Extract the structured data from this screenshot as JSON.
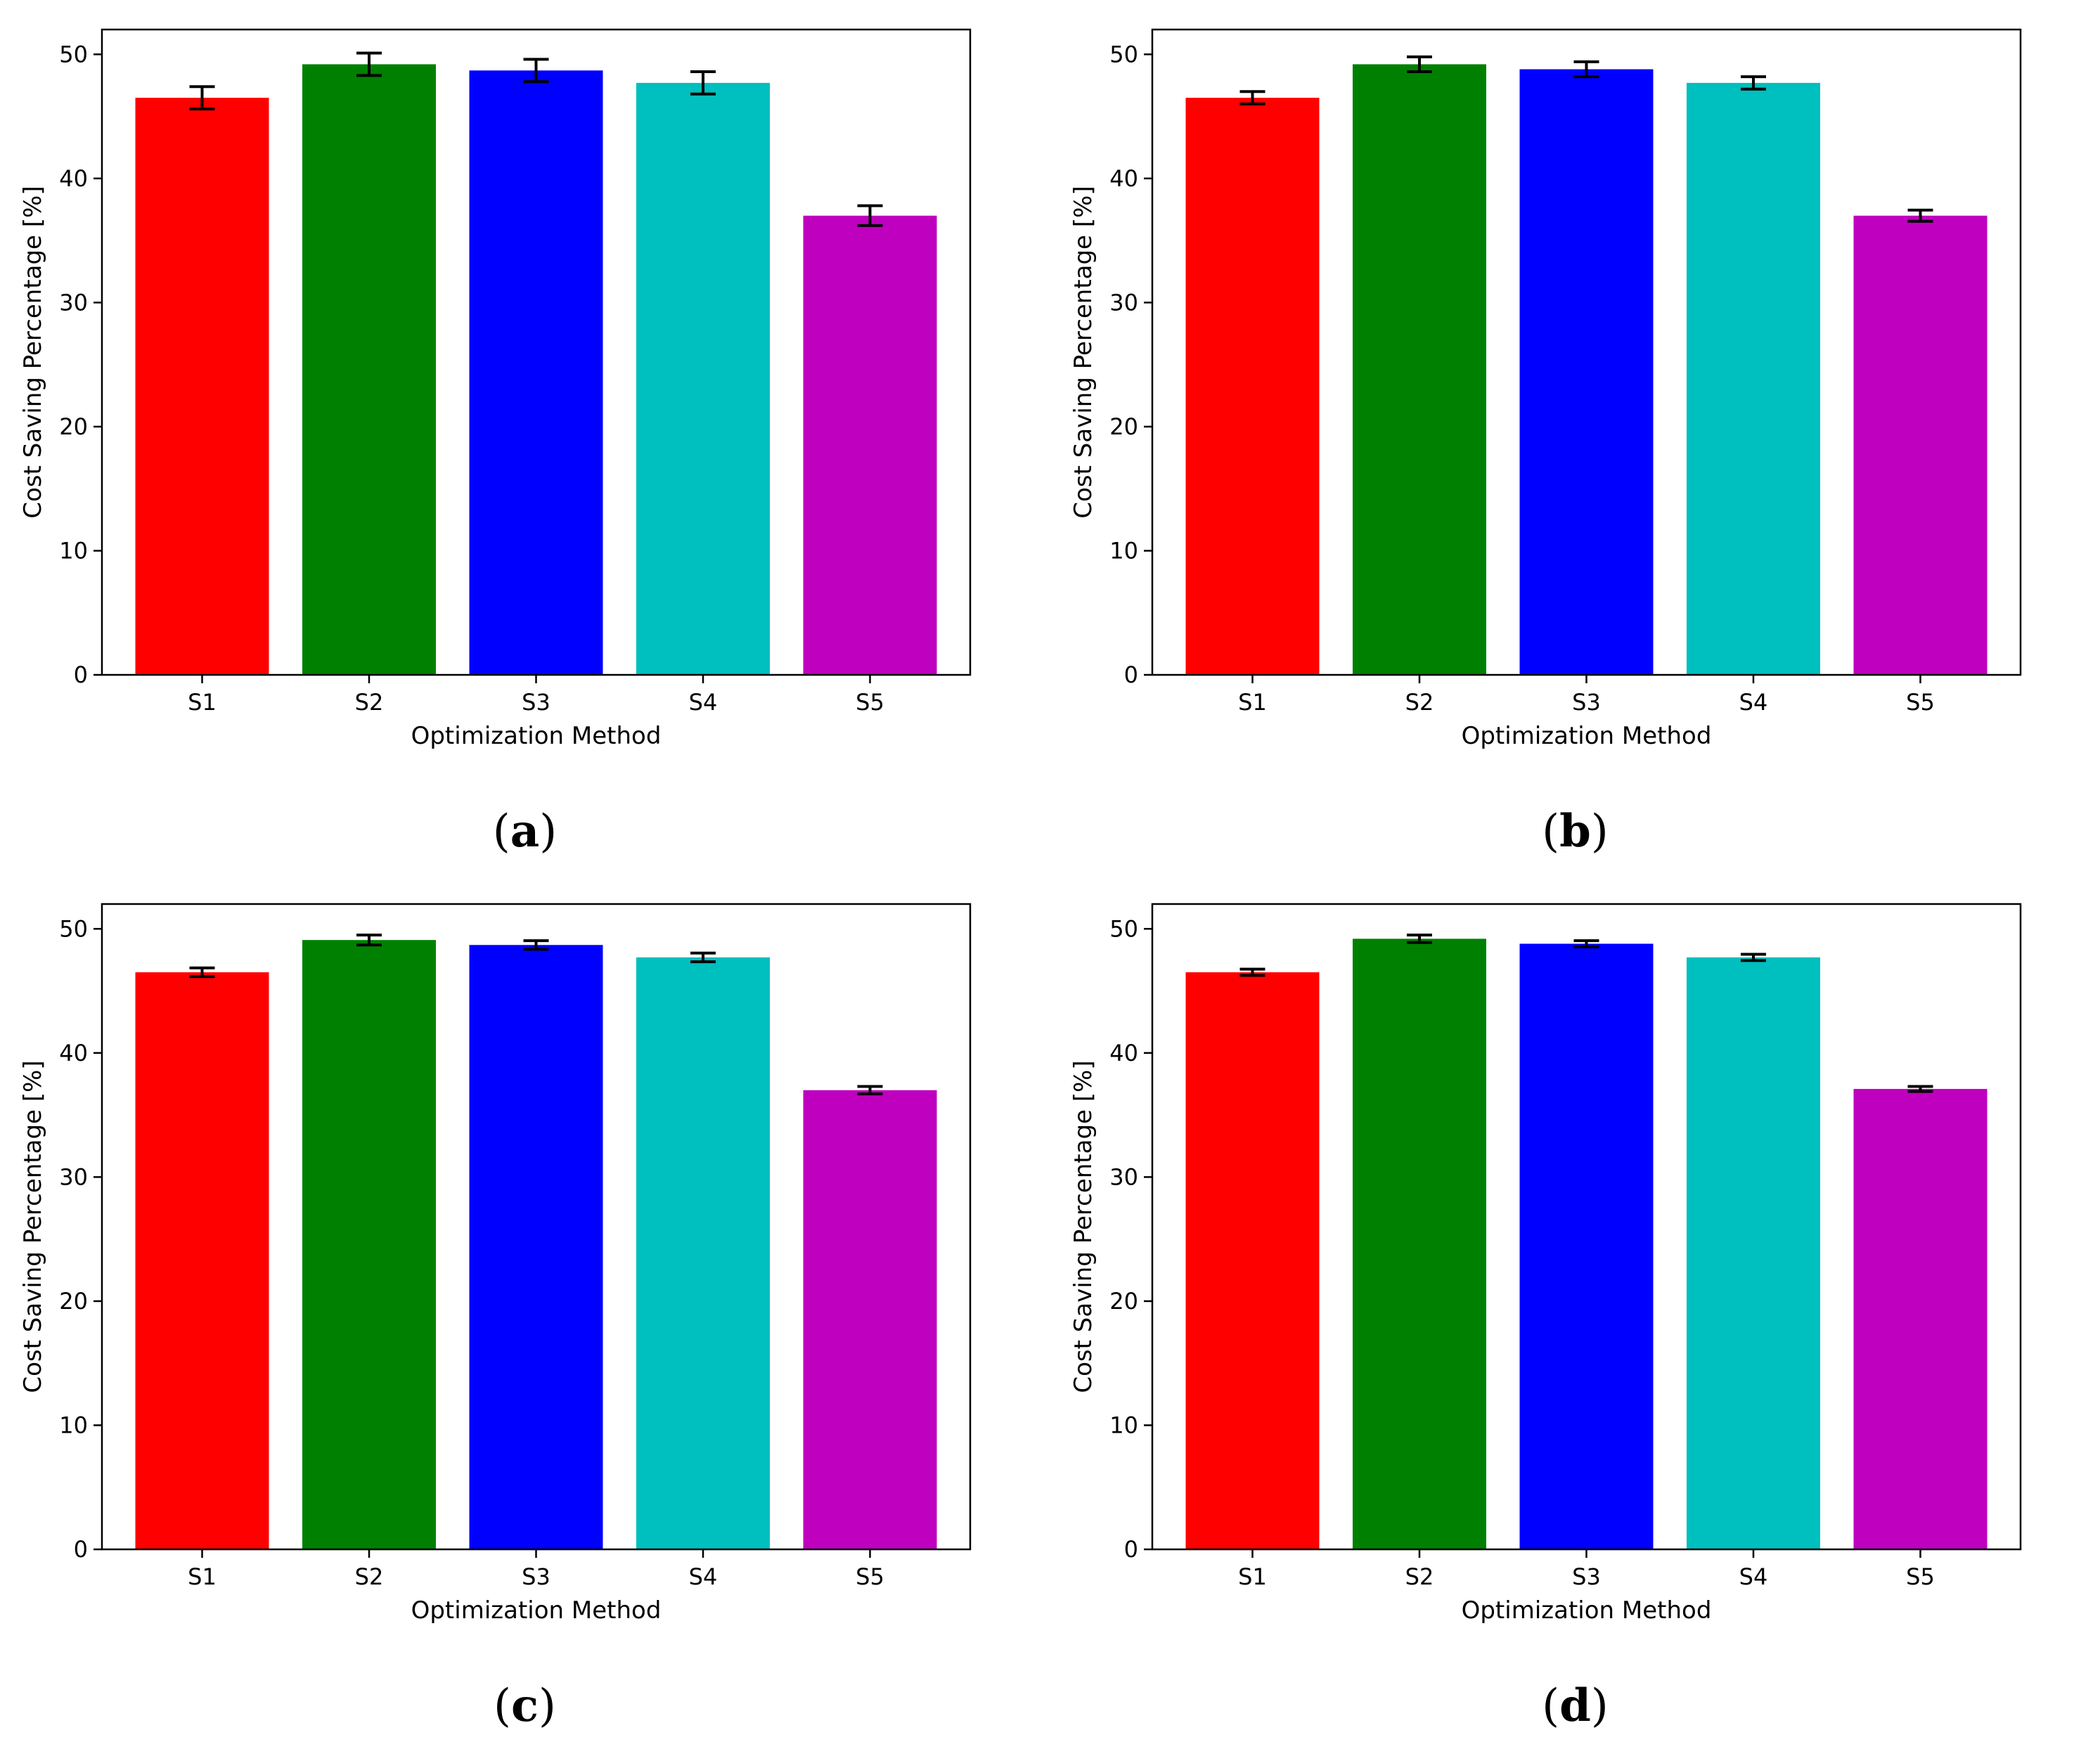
{
  "chart_data": [
    {
      "type": "bar",
      "panel_label": "a",
      "categories": [
        "S1",
        "S2",
        "S3",
        "S4",
        "S5"
      ],
      "values": [
        46.5,
        49.2,
        48.7,
        47.7,
        37.0
      ],
      "errors": [
        0.9,
        0.9,
        0.9,
        0.9,
        0.8
      ],
      "colors": [
        "#ff0000",
        "#008000",
        "#0000ff",
        "#00bfbf",
        "#bf00bf"
      ],
      "xlabel": "Optimization Method",
      "ylabel": "Cost Saving Percentage [%]",
      "yticks": [
        "0",
        "10",
        "20",
        "30",
        "40",
        "50"
      ],
      "ylim": [
        0,
        52
      ]
    },
    {
      "type": "bar",
      "panel_label": "b",
      "categories": [
        "S1",
        "S2",
        "S3",
        "S4",
        "S5"
      ],
      "values": [
        46.5,
        49.2,
        48.8,
        47.7,
        37.0
      ],
      "errors": [
        0.5,
        0.6,
        0.6,
        0.5,
        0.45
      ],
      "colors": [
        "#ff0000",
        "#008000",
        "#0000ff",
        "#00bfbf",
        "#bf00bf"
      ],
      "xlabel": "Optimization Method",
      "ylabel": "Cost Saving Percentage [%]",
      "yticks": [
        "0",
        "10",
        "20",
        "30",
        "40",
        "50"
      ],
      "ylim": [
        0,
        52
      ]
    },
    {
      "type": "bar",
      "panel_label": "c",
      "categories": [
        "S1",
        "S2",
        "S3",
        "S4",
        "S5"
      ],
      "values": [
        46.5,
        49.1,
        48.7,
        47.7,
        37.0
      ],
      "errors": [
        0.35,
        0.4,
        0.35,
        0.35,
        0.3
      ],
      "colors": [
        "#ff0000",
        "#008000",
        "#0000ff",
        "#00bfbf",
        "#bf00bf"
      ],
      "xlabel": "Optimization Method",
      "ylabel": "Cost Saving Percentage [%]",
      "yticks": [
        "0",
        "10",
        "20",
        "30",
        "40",
        "50"
      ],
      "ylim": [
        0,
        52
      ]
    },
    {
      "type": "bar",
      "panel_label": "d",
      "categories": [
        "S1",
        "S2",
        "S3",
        "S4",
        "S5"
      ],
      "values": [
        46.5,
        49.2,
        48.8,
        47.7,
        37.1
      ],
      "errors": [
        0.25,
        0.3,
        0.25,
        0.25,
        0.2
      ],
      "colors": [
        "#ff0000",
        "#008000",
        "#0000ff",
        "#00bfbf",
        "#bf00bf"
      ],
      "xlabel": "Optimization Method",
      "ylabel": "Cost Saving Percentage [%]",
      "yticks": [
        "0",
        "10",
        "20",
        "30",
        "40",
        "50"
      ],
      "ylim": [
        0,
        52
      ]
    }
  ]
}
